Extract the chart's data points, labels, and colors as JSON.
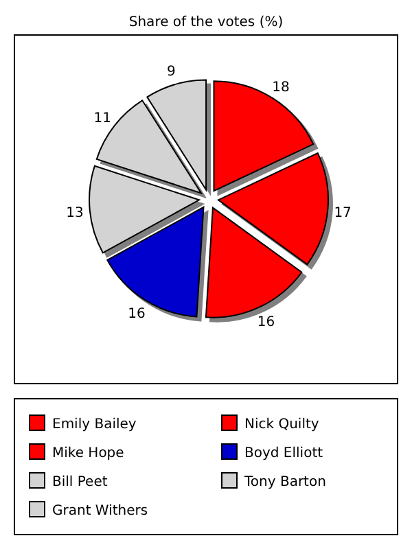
{
  "chart_data": {
    "type": "pie",
    "title": "Share of the votes (%)",
    "categories": [
      "Emily Bailey",
      "Nick Quilty",
      "Mike Hope",
      "Boyd Elliott",
      "Bill Peet",
      "Tony Barton",
      "Grant Withers"
    ],
    "values": [
      18,
      17,
      16,
      16,
      13,
      11,
      9
    ],
    "colors": [
      "#ff0000",
      "#ff0000",
      "#ff0000",
      "#0000cc",
      "#d3d3d3",
      "#d3d3d3",
      "#d3d3d3"
    ],
    "data_labels": true,
    "legend": "bottom"
  }
}
